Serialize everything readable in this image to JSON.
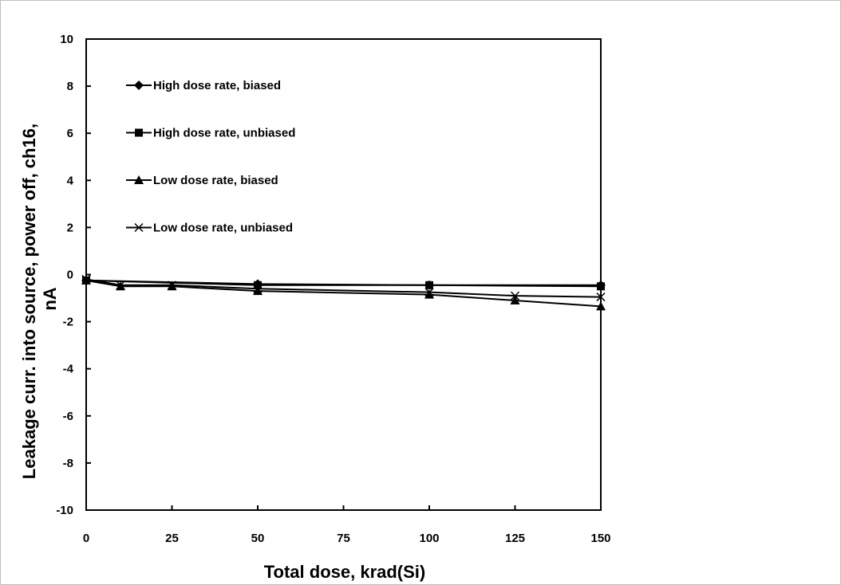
{
  "chart_data": {
    "type": "line",
    "title": "",
    "xlabel": "Total dose, krad(Si)",
    "ylabel_lines": [
      "Leakage curr. into source, power off, ch16,",
      "nA"
    ],
    "xlim": [
      0,
      150
    ],
    "ylim": [
      -10,
      10
    ],
    "x_ticks": [
      "0",
      "25",
      "50",
      "75",
      "100",
      "125",
      "150"
    ],
    "y_ticks": [
      "10",
      "8",
      "6",
      "4",
      "2",
      "0",
      "-2",
      "-4",
      "-6",
      "-8",
      "-10"
    ],
    "grid": false,
    "legend_position": "top-left",
    "series": [
      {
        "name": "High dose rate, biased",
        "marker": "diamond",
        "x": [
          0,
          50,
          100,
          150
        ],
        "y": [
          -0.25,
          -0.4,
          -0.45,
          -0.45
        ]
      },
      {
        "name": "High dose rate, unbiased",
        "marker": "square",
        "x": [
          0,
          50,
          100,
          150
        ],
        "y": [
          -0.25,
          -0.45,
          -0.45,
          -0.5
        ]
      },
      {
        "name": "Low dose rate, biased",
        "marker": "triangle",
        "x": [
          0,
          10,
          25,
          50,
          100,
          125,
          150
        ],
        "y": [
          -0.25,
          -0.5,
          -0.5,
          -0.7,
          -0.85,
          -1.1,
          -1.35
        ]
      },
      {
        "name": "Low dose rate, unbiased",
        "marker": "x",
        "x": [
          0,
          10,
          25,
          50,
          100,
          125,
          150
        ],
        "y": [
          -0.2,
          -0.45,
          -0.45,
          -0.6,
          -0.75,
          -0.9,
          -0.95
        ]
      }
    ]
  }
}
